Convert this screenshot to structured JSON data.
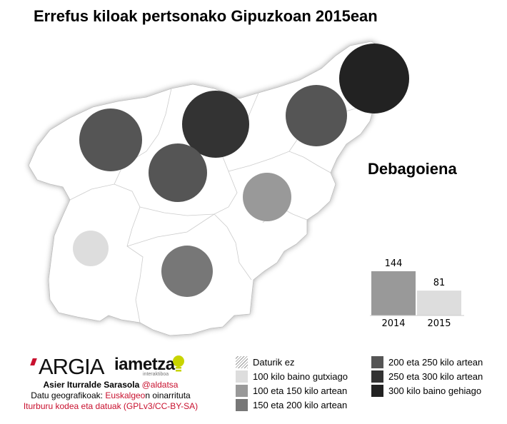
{
  "title": "Errefus kiloak pertsonako Gipuzkoan 2015ean",
  "selected_region": "Debagoiena",
  "colors": {
    "map_fill": "#ffffff",
    "map_border": "#cccccc",
    "under_100": "#dddddd",
    "100_150": "#999999",
    "150_200": "#777777",
    "200_250": "#555555",
    "250_300": "#333333",
    "over_300": "#222222",
    "bar_2014": "#999999",
    "bar_2015": "#dddddd",
    "accent_red": "#c8102e"
  },
  "chart_data": {
    "type": "bar",
    "categories": [
      "2014",
      "2015"
    ],
    "values": [
      144,
      81
    ]
  },
  "bubbles": [
    {
      "name": "circle-bidasoa",
      "category": "200_250"
    },
    {
      "name": "circle-donostialdea",
      "category": "250_300"
    },
    {
      "name": "circle-oarsoaldea",
      "category": "200_250"
    },
    {
      "name": "circle-bidasoa-east",
      "category": "over_300"
    },
    {
      "name": "circle-urola-kosta",
      "category": "200_250"
    },
    {
      "name": "circle-buruntzaldea",
      "category": "100_150"
    },
    {
      "name": "circle-debagoiena",
      "category": "under_100"
    },
    {
      "name": "circle-goierri",
      "category": "150_200"
    }
  ],
  "legend": [
    {
      "label": "Daturik ez",
      "key": "hatch"
    },
    {
      "label": "100 kilo baino gutxiago",
      "key": "under_100"
    },
    {
      "label": "100 eta 150 kilo artean",
      "key": "100_150"
    },
    {
      "label": "150 eta 200 kilo artean",
      "key": "150_200"
    },
    {
      "label": "200 eta 250 kilo artean",
      "key": "200_250"
    },
    {
      "label": "250 eta 300 kilo artean",
      "key": "250_300"
    },
    {
      "label": "300 kilo baino gehiago",
      "key": "over_300"
    }
  ],
  "logos": {
    "argia": "ARGIA",
    "iametza": "iametza",
    "iametza_sub": "interaktiboa"
  },
  "credits": {
    "author_name": "Asier Iturralde Sarasola ",
    "author_handle": "@aldatsa",
    "geo_prefix": "Datu geografikoak: ",
    "geo_link": "Euskalgeo",
    "geo_suffix": "n oinarrituta",
    "source": "Iturburu kodea eta datuak (GPLv3/CC-BY-SA)"
  }
}
